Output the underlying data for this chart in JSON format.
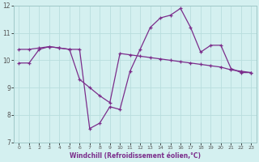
{
  "xlabel": "Windchill (Refroidissement éolien,°C)",
  "x": [
    0,
    1,
    2,
    3,
    4,
    5,
    6,
    7,
    8,
    9,
    10,
    11,
    12,
    13,
    14,
    15,
    16,
    17,
    18,
    19,
    20,
    21,
    22,
    23
  ],
  "line1": [
    10.4,
    10.4,
    10.45,
    10.5,
    10.45,
    10.4,
    10.4,
    7.5,
    7.7,
    8.3,
    8.2,
    9.6,
    10.4,
    11.2,
    11.55,
    11.65,
    11.9,
    11.2,
    10.3,
    10.55,
    10.55,
    9.7,
    9.55,
    9.55
  ],
  "line2": [
    9.9,
    9.9,
    10.4,
    10.5,
    10.45,
    10.4,
    9.3,
    9.0,
    8.7,
    8.45,
    10.25,
    10.2,
    10.15,
    10.1,
    10.05,
    10.0,
    9.95,
    9.9,
    9.85,
    9.8,
    9.75,
    9.65,
    9.6,
    9.55
  ],
  "line_color": "#7b2d8b",
  "bg_color": "#d4f0f0",
  "ylim": [
    7,
    12
  ],
  "xlim": [
    -0.5,
    23.5
  ],
  "yticks": [
    7,
    8,
    9,
    10,
    11,
    12
  ],
  "xticks": [
    0,
    1,
    2,
    3,
    4,
    5,
    6,
    7,
    8,
    9,
    10,
    11,
    12,
    13,
    14,
    15,
    16,
    17,
    18,
    19,
    20,
    21,
    22,
    23
  ],
  "grid_color": "#b8dede",
  "marker": "+"
}
